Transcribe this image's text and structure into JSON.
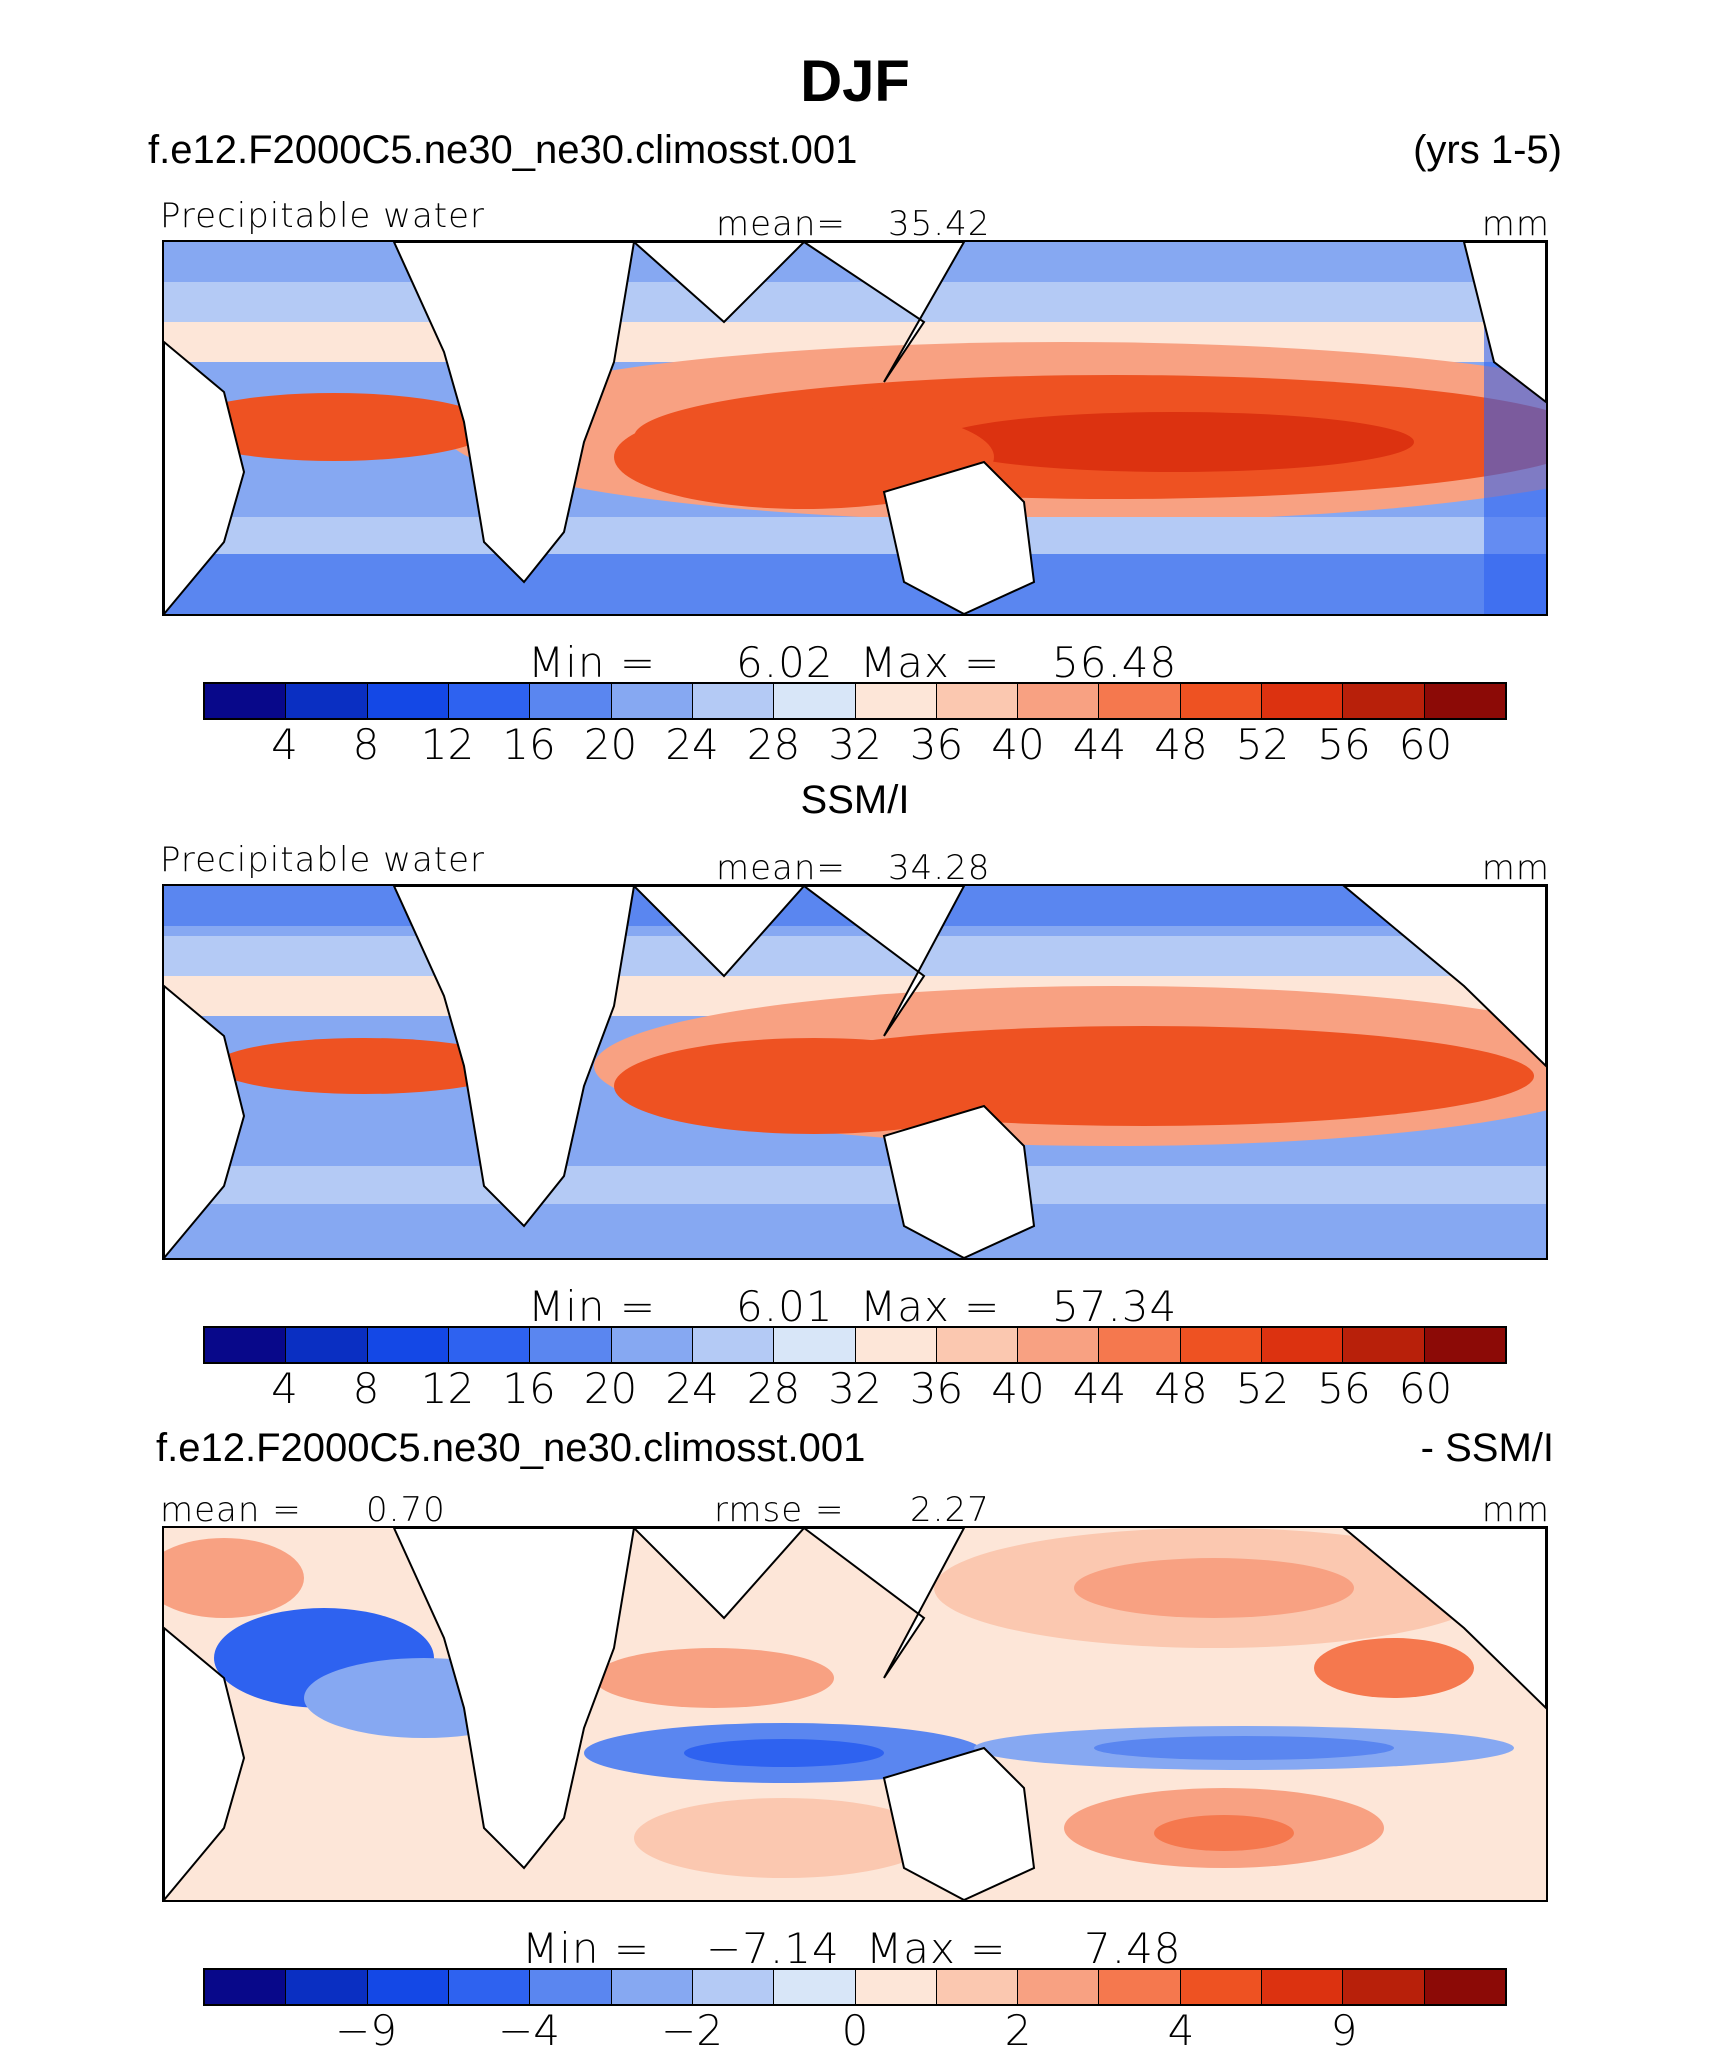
{
  "title": "DJF",
  "panel1": {
    "case": "f.e12.F2000C5.ne30_ne30.climosst.001",
    "years": "(yrs 1-5)",
    "variable": "Precipitable water",
    "mean_label": "mean=",
    "mean_value": "35.42",
    "units": "mm",
    "min_label": "Min =",
    "min_value": "6.02",
    "max_label": "Max =",
    "max_value": "56.48"
  },
  "panel2": {
    "source": "SSM/I",
    "variable": "Precipitable water",
    "mean_label": "mean=",
    "mean_value": "34.28",
    "units": "mm",
    "min_label": "Min =",
    "min_value": "6.01",
    "max_label": "Max =",
    "max_value": "57.34"
  },
  "panel3": {
    "case": "f.e12.F2000C5.ne30_ne30.climosst.001",
    "minus": "- SSM/I",
    "mean_label": "mean =",
    "mean_value": "0.70",
    "rmse_label": "rmse =",
    "rmse_value": "2.27",
    "units": "mm",
    "min_label": "Min =",
    "min_value": "−7.14",
    "max_label": "Max =",
    "max_value": "7.48"
  },
  "colorbar_abs": {
    "ticks": [
      "4",
      "8",
      "12",
      "16",
      "20",
      "24",
      "28",
      "32",
      "36",
      "40",
      "44",
      "48",
      "52",
      "56",
      "60"
    ]
  },
  "colorbar_diff": {
    "ticks": [
      "−9",
      "−4",
      "−2",
      "0",
      "2",
      "4",
      "9"
    ]
  },
  "colors": {
    "palette": [
      "#08088a",
      "#0a2fc2",
      "#1448e6",
      "#2e62f0",
      "#5a86f0",
      "#86a8f2",
      "#b4caf5",
      "#d8e6f8",
      "#fde6d8",
      "#fbc8b0",
      "#f8a182",
      "#f5784e",
      "#ee5222",
      "#dc3210",
      "#b8200a",
      "#8c0a06"
    ],
    "land": "#ffffff",
    "coastline": "#000000"
  }
}
